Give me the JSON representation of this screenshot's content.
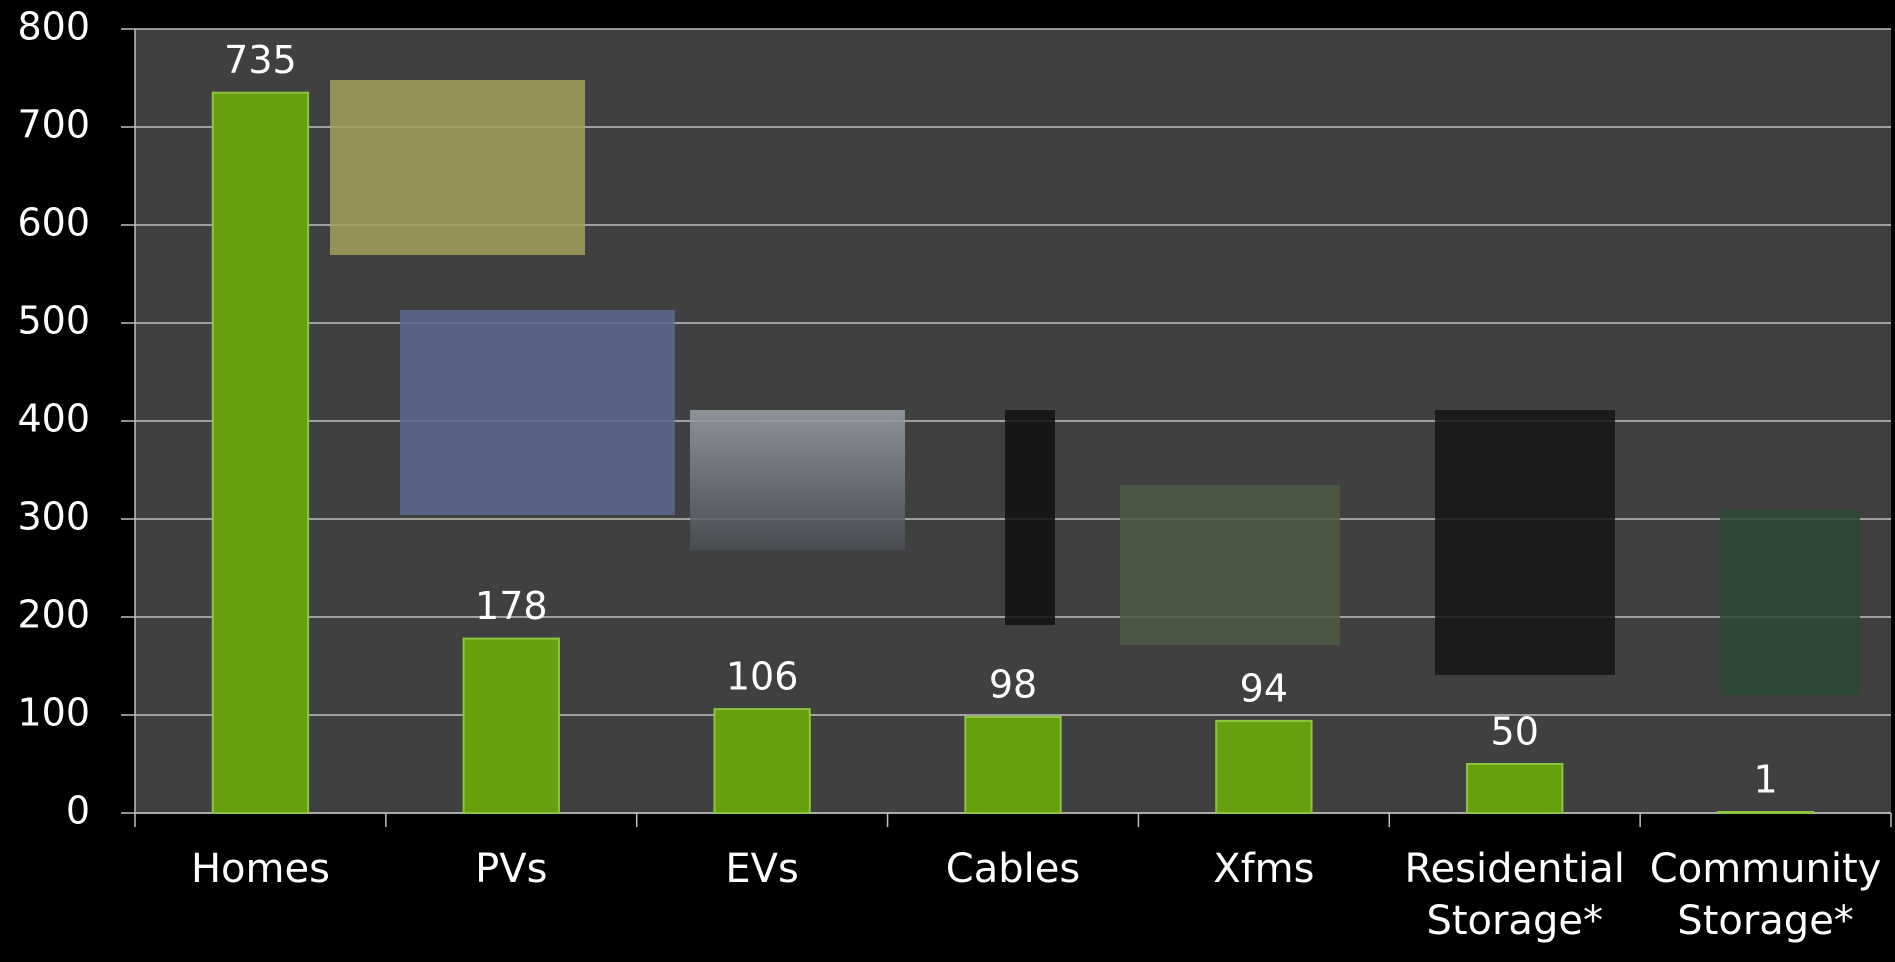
{
  "chart_data": {
    "type": "bar",
    "categories": [
      "Homes",
      "PVs",
      "EVs",
      "Cables",
      "Xfms",
      "Residential Storage*",
      "Community Storage*"
    ],
    "values": [
      735,
      178,
      106,
      98,
      94,
      50,
      1
    ],
    "color": "#66a00f",
    "ylim": [
      0,
      800
    ],
    "yticks": [
      0,
      100,
      200,
      300,
      400,
      500,
      600,
      700,
      800
    ],
    "grid": true
  }
}
